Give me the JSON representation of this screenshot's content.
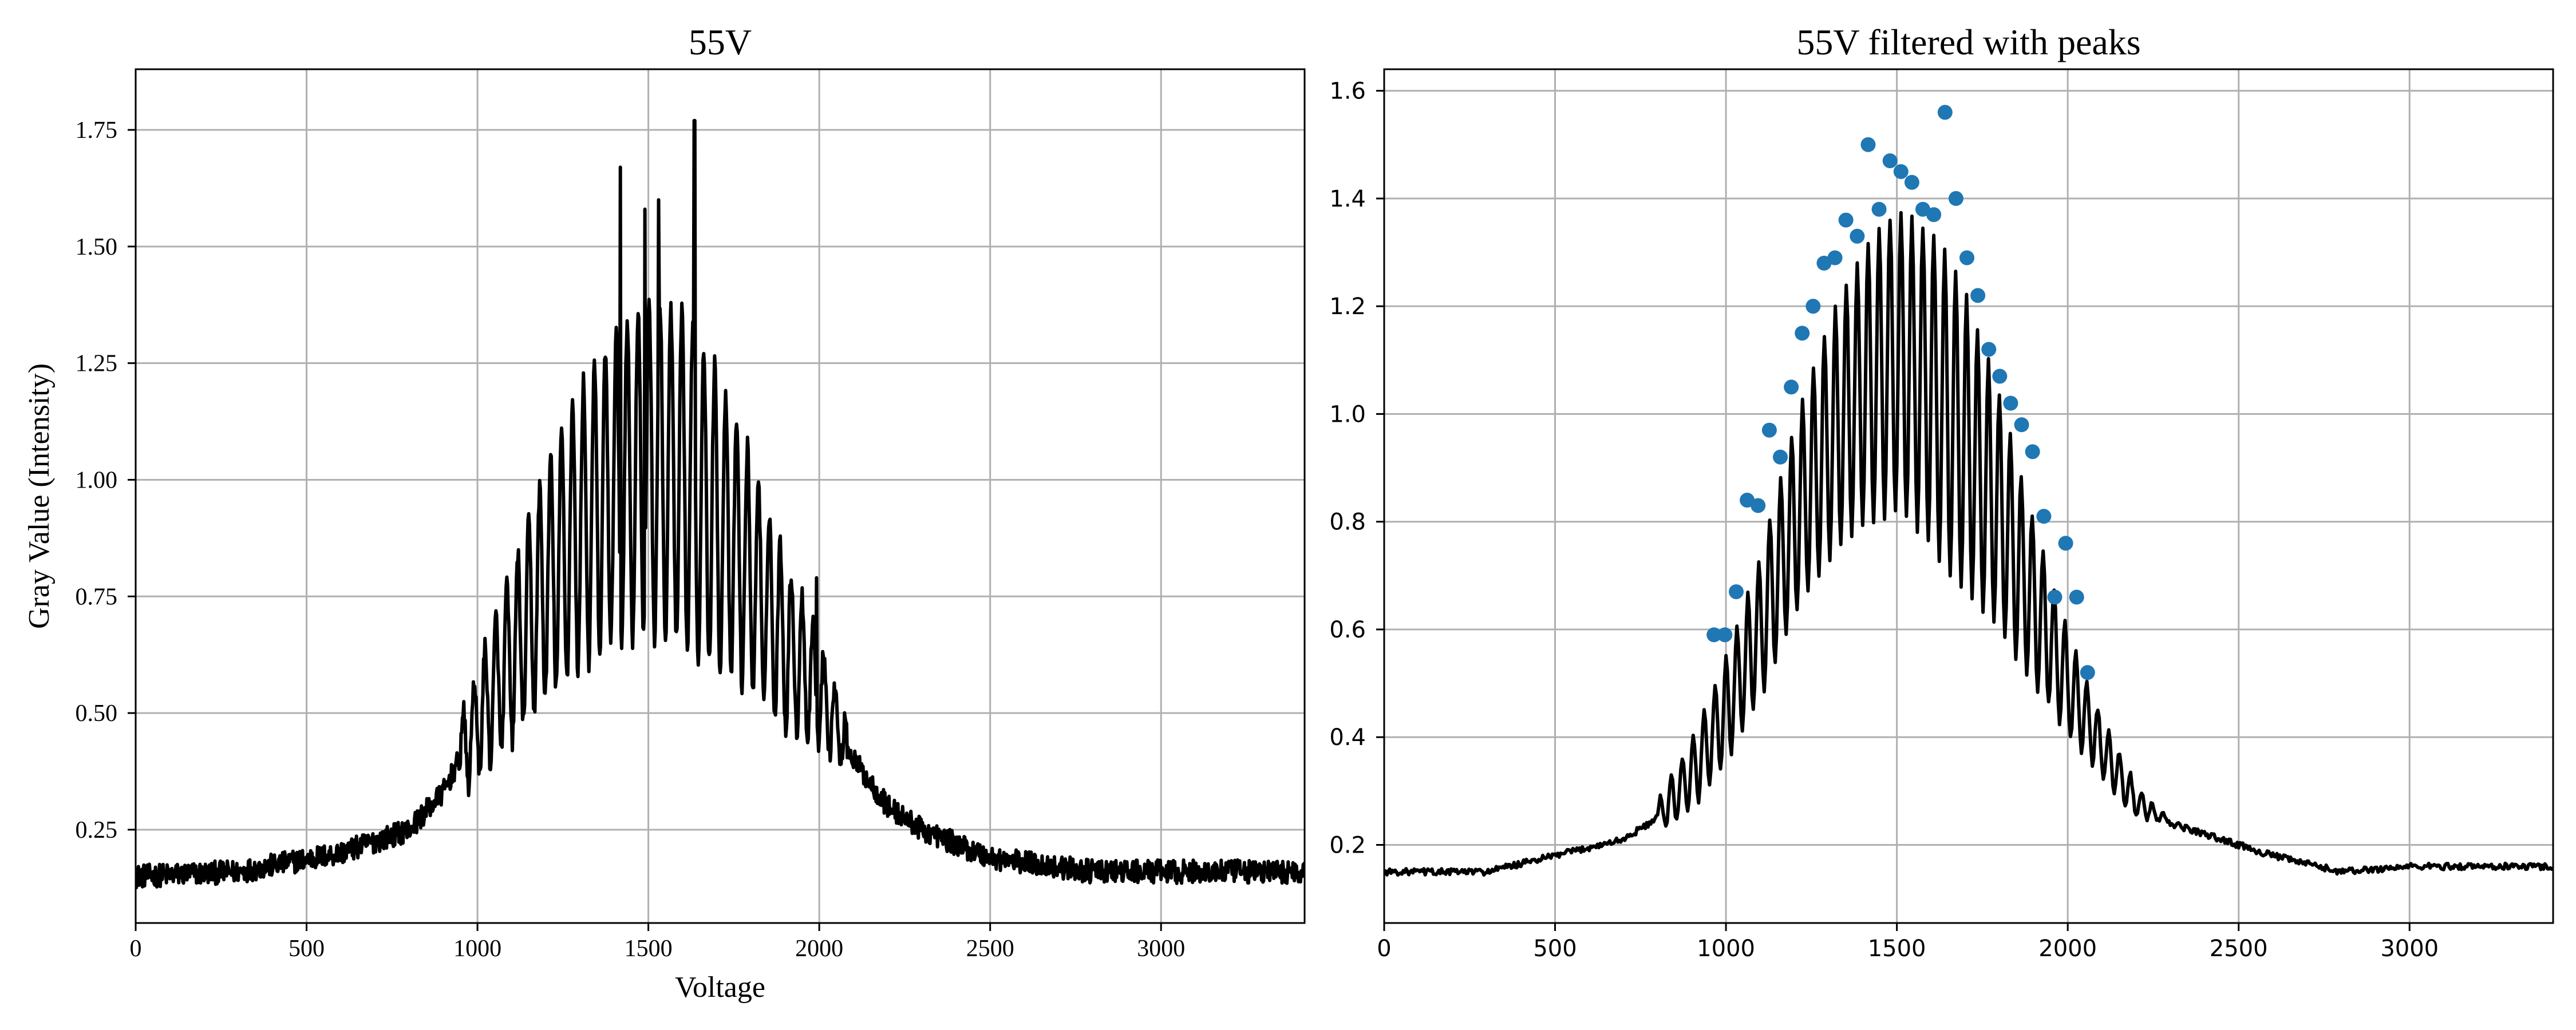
{
  "chart_data": [
    {
      "type": "line",
      "title": "55V",
      "xlabel": "Voltage",
      "ylabel": "Gray Value (Intensity)",
      "xlim": [
        0,
        3420
      ],
      "ylim": [
        0.05,
        1.88
      ],
      "xticks": [
        0,
        500,
        1000,
        1500,
        2000,
        2500,
        3000
      ],
      "yticks": [
        0.25,
        0.5,
        0.75,
        1.0,
        1.25,
        1.5,
        1.75
      ],
      "ytick_labels": [
        "0.25",
        "0.50",
        "0.75",
        "1.00",
        "1.25",
        "1.50",
        "1.75"
      ],
      "grid": true,
      "line_color": "#000000",
      "series": [
        {
          "envelope": {
            "x": [
              0,
              300,
              600,
              800,
              900,
              1000,
              1100,
              1200,
              1300,
              1400,
              1500,
              1600,
              1700,
              1800,
              1900,
              2000,
              2100,
              2200,
              2300,
              2400,
              2500,
              2800,
              3100,
              3420
            ],
            "y": [
              0.15,
              0.16,
              0.2,
              0.25,
              0.33,
              0.48,
              0.62,
              0.78,
              0.9,
              0.98,
              1.03,
              1.0,
              0.92,
              0.8,
              0.65,
              0.55,
              0.4,
              0.3,
              0.25,
              0.22,
              0.19,
              0.16,
              0.16,
              0.16
            ]
          },
          "oscillation": {
            "period": 32,
            "start": 950,
            "end": 2080,
            "amplitude": {
              "x": [
                950,
                1100,
                1300,
                1500,
                1650,
                1800,
                1950,
                2080
              ],
              "y": [
                0.08,
                0.18,
                0.3,
                0.36,
                0.35,
                0.25,
                0.15,
                0.05
              ]
            }
          },
          "spikes": [
            {
              "x": 1418,
              "y": 1.67
            },
            {
              "x": 1635,
              "y": 1.77
            },
            {
              "x": 1530,
              "y": 1.6
            },
            {
              "x": 1490,
              "y": 1.58
            },
            {
              "x": 1992,
              "y": 0.79
            }
          ],
          "noise": 0.025
        }
      ]
    },
    {
      "type": "line",
      "title": "55V filtered with peaks",
      "xlim": [
        0,
        3420
      ],
      "ylim": [
        0.055,
        1.64
      ],
      "xticks": [
        0,
        500,
        1000,
        1500,
        2000,
        2500,
        3000
      ],
      "yticks": [
        0.2,
        0.4,
        0.6,
        0.8,
        1.0,
        1.2,
        1.4,
        1.6
      ],
      "ytick_labels": [
        "0.2",
        "0.4",
        "0.6",
        "0.8",
        "1.0",
        "1.2",
        "1.4",
        "1.6"
      ],
      "grid": true,
      "line_color": "#000000",
      "marker_color": "#1f77b4",
      "series": [
        {
          "envelope": {
            "x": [
              0,
              300,
              500,
              700,
              800,
              900,
              1000,
              1100,
              1200,
              1300,
              1400,
              1500,
              1600,
              1700,
              1800,
              1900,
              2000,
              2100,
              2200,
              2300,
              2400,
              2500,
              2600,
              2800,
              3000,
              3420
            ],
            "y": [
              0.15,
              0.15,
              0.18,
              0.21,
              0.25,
              0.33,
              0.45,
              0.6,
              0.8,
              0.95,
              1.05,
              1.1,
              1.05,
              0.95,
              0.82,
              0.65,
              0.5,
              0.38,
              0.28,
              0.24,
              0.22,
              0.2,
              0.18,
              0.15,
              0.16,
              0.16
            ]
          },
          "oscillation": {
            "period": 32,
            "start": 800,
            "end": 2300,
            "amplitude": {
              "x": [
                800,
                950,
                1100,
                1300,
                1450,
                1650,
                1800,
                1950,
                2080,
                2200,
                2300
              ],
              "y": [
                0.03,
                0.08,
                0.13,
                0.22,
                0.27,
                0.3,
                0.22,
                0.12,
                0.06,
                0.03,
                0.0
              ]
            }
          },
          "noise": 0.006
        }
      ],
      "peaks": {
        "x": [
          965,
          997,
          1030,
          1062,
          1094,
          1127,
          1159,
          1191,
          1223,
          1255,
          1287,
          1319,
          1351,
          1384,
          1416,
          1448,
          1480,
          1512,
          1544,
          1576,
          1608,
          1641,
          1673,
          1705,
          1737,
          1769,
          1801,
          1833,
          1865,
          1897,
          1930,
          1962,
          1994,
          2026,
          2058
        ],
        "y": [
          0.59,
          0.59,
          0.67,
          0.84,
          0.83,
          0.97,
          0.92,
          1.05,
          1.15,
          1.2,
          1.28,
          1.29,
          1.36,
          1.33,
          1.5,
          1.38,
          1.47,
          1.45,
          1.43,
          1.38,
          1.37,
          1.56,
          1.4,
          1.29,
          1.22,
          1.12,
          1.07,
          1.02,
          0.98,
          0.93,
          0.81,
          0.66,
          0.76,
          0.66,
          0.52
        ]
      }
    }
  ]
}
